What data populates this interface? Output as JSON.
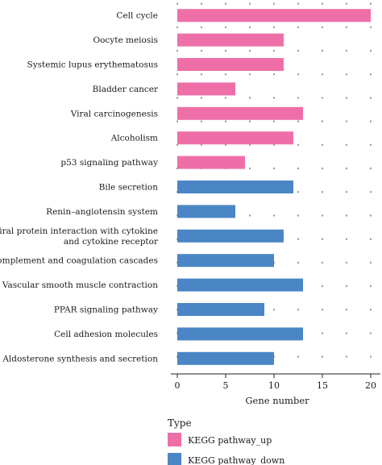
{
  "chart_data": {
    "type": "bar",
    "orientation": "horizontal",
    "categories": [
      "Cell cycle",
      "Oocyte meiosis",
      "Systemic lupus erythematosus",
      "Bladder cancer",
      "Viral carcinogenesis",
      "Alcoholism",
      "p53 signaling pathway",
      "Bile secretion",
      "Renin–angiotensin system",
      "Viral protein interaction with cytokine\nand cytokine receptor",
      "Complement and coagulation cascades",
      "Vascular smooth muscle contraction",
      "PPAR signaling pathway",
      "Cell adhesion molecules",
      "Aldosterone synthesis and secretion"
    ],
    "values": [
      20,
      11,
      11,
      6,
      13,
      12,
      7,
      12,
      6,
      11,
      10,
      13,
      9,
      13,
      10
    ],
    "types": [
      "up",
      "up",
      "up",
      "up",
      "up",
      "up",
      "up",
      "down",
      "down",
      "down",
      "down",
      "down",
      "down",
      "down",
      "down"
    ],
    "xlabel": "Gene number",
    "xlim": [
      -1,
      21
    ],
    "xticks": [
      0,
      5,
      10,
      15,
      20
    ],
    "grid": "dotted",
    "legend": {
      "title": "Type",
      "placement": "bottom",
      "entries": [
        {
          "key": "up",
          "label": "KEGG pathway_up",
          "color": "#ee6fa8"
        },
        {
          "key": "down",
          "label": "KEGG pathway_down",
          "color": "#4a86c5"
        }
      ]
    }
  }
}
